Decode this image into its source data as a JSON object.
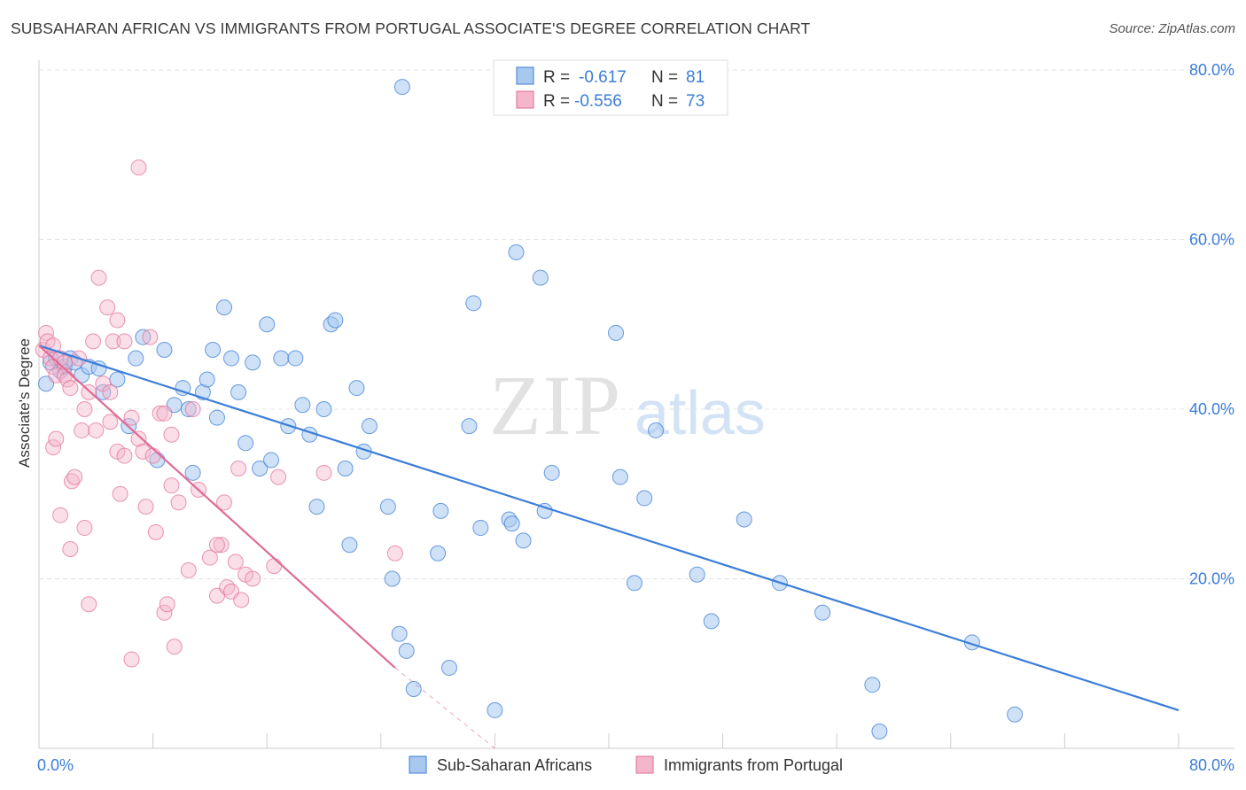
{
  "header": {
    "title": "SUBSAHARAN AFRICAN VS IMMIGRANTS FROM PORTUGAL ASSOCIATE'S DEGREE CORRELATION CHART",
    "source": "Source: ZipAtlas.com"
  },
  "watermark": {
    "zip": "ZIP",
    "atlas": "atlas"
  },
  "legend": {
    "rows": [
      {
        "r_label": "R =",
        "r_value": "-0.617",
        "n_label": "N =",
        "n_value": "81"
      },
      {
        "r_label": "R =",
        "r_value": "-0.556",
        "n_label": "N =",
        "n_value": "73"
      }
    ]
  },
  "bottom_legend": {
    "items": [
      {
        "label": "Sub-Saharan Africans"
      },
      {
        "label": "Immigrants from Portugal"
      }
    ]
  },
  "chart_data": {
    "type": "scatter",
    "ylabel": "Associate's Degree",
    "xlim": [
      0,
      80
    ],
    "ylim": [
      0,
      80
    ],
    "x_tick_labels": [
      "0.0%",
      "80.0%"
    ],
    "y_tick_labels": [
      "20.0%",
      "40.0%",
      "60.0%",
      "80.0%"
    ],
    "y_ticks": [
      20,
      40,
      60,
      80
    ],
    "grid": true,
    "colors": {
      "blue": "#3b7dd8",
      "pink": "#e06b96",
      "blue_fill": "#a8c8ef",
      "pink_fill": "#f5b6cb"
    },
    "series": [
      {
        "name": "Sub-Saharan Africans",
        "color": "#3b7dd8",
        "trend": {
          "x": [
            0,
            80
          ],
          "y": [
            47.5,
            4.5
          ]
        },
        "points": [
          [
            0.5,
            43
          ],
          [
            0.8,
            45.5
          ],
          [
            1.2,
            46
          ],
          [
            1.5,
            44.5
          ],
          [
            1.8,
            45
          ],
          [
            2.2,
            46
          ],
          [
            2.5,
            45.5
          ],
          [
            3,
            44
          ],
          [
            3.5,
            45
          ],
          [
            4.2,
            44.8
          ],
          [
            4.5,
            42
          ],
          [
            5.5,
            43.5
          ],
          [
            6.3,
            38
          ],
          [
            6.8,
            46
          ],
          [
            7.3,
            48.5
          ],
          [
            8.3,
            34
          ],
          [
            8.8,
            47
          ],
          [
            9.5,
            40.5
          ],
          [
            10.1,
            42.5
          ],
          [
            10.5,
            40
          ],
          [
            10.8,
            32.5
          ],
          [
            11.5,
            42
          ],
          [
            11.8,
            43.5
          ],
          [
            12.2,
            47
          ],
          [
            12.5,
            39
          ],
          [
            13,
            52
          ],
          [
            13.5,
            46
          ],
          [
            14,
            42
          ],
          [
            14.5,
            36
          ],
          [
            15,
            45.5
          ],
          [
            15.5,
            33
          ],
          [
            16,
            50
          ],
          [
            16.3,
            34
          ],
          [
            17,
            46
          ],
          [
            17.5,
            38
          ],
          [
            18,
            46
          ],
          [
            18.5,
            40.5
          ],
          [
            19,
            37
          ],
          [
            19.5,
            28.5
          ],
          [
            20,
            40
          ],
          [
            20.5,
            50
          ],
          [
            20.8,
            50.5
          ],
          [
            21.5,
            33
          ],
          [
            21.8,
            24
          ],
          [
            22.3,
            42.5
          ],
          [
            22.8,
            35
          ],
          [
            23.2,
            38
          ],
          [
            24.5,
            28.5
          ],
          [
            24.8,
            20
          ],
          [
            25.3,
            13.5
          ],
          [
            25.8,
            11.5
          ],
          [
            26.3,
            7
          ],
          [
            28,
            23
          ],
          [
            28.2,
            28
          ],
          [
            28.8,
            9.5
          ],
          [
            30.2,
            38
          ],
          [
            30.5,
            52.5
          ],
          [
            31,
            26
          ],
          [
            32,
            4.5
          ],
          [
            33,
            27
          ],
          [
            33.2,
            26.5
          ],
          [
            34,
            24.5
          ],
          [
            33.5,
            58.5
          ],
          [
            35.2,
            55.5
          ],
          [
            35.5,
            28
          ],
          [
            36,
            32.5
          ],
          [
            40.5,
            49
          ],
          [
            40.8,
            32
          ],
          [
            41.8,
            19.5
          ],
          [
            42.5,
            29.5
          ],
          [
            43.3,
            37.5
          ],
          [
            46.2,
            20.5
          ],
          [
            47.2,
            15
          ],
          [
            49.5,
            27
          ],
          [
            52,
            19.5
          ],
          [
            55,
            16
          ],
          [
            58.5,
            7.5
          ],
          [
            59,
            2
          ],
          [
            65.5,
            12.5
          ],
          [
            68.5,
            4
          ],
          [
            25.5,
            78
          ]
        ]
      },
      {
        "name": "Immigrants from Portugal",
        "color": "#e06b96",
        "trend": {
          "x": [
            0,
            25
          ],
          "y": [
            47.5,
            9.5
          ]
        },
        "trend_dashed": {
          "x": [
            25,
            32
          ],
          "y": [
            9.5,
            0
          ]
        },
        "points": [
          [
            0.3,
            47
          ],
          [
            0.5,
            49
          ],
          [
            0.6,
            48
          ],
          [
            0.8,
            46
          ],
          [
            1,
            45
          ],
          [
            1,
            47.5
          ],
          [
            1.2,
            44
          ],
          [
            1.5,
            46
          ],
          [
            1.8,
            45.5
          ],
          [
            1,
            35.5
          ],
          [
            1.2,
            36.5
          ],
          [
            1.5,
            27.5
          ],
          [
            1.8,
            44
          ],
          [
            2,
            43.5
          ],
          [
            2.2,
            42.5
          ],
          [
            2.2,
            23.5
          ],
          [
            2.3,
            31.5
          ],
          [
            2.5,
            32
          ],
          [
            2.8,
            46
          ],
          [
            3,
            37.5
          ],
          [
            3.2,
            40
          ],
          [
            3.5,
            42
          ],
          [
            3.2,
            26
          ],
          [
            3.5,
            17
          ],
          [
            3.8,
            48
          ],
          [
            4,
            37.5
          ],
          [
            4.2,
            55.5
          ],
          [
            4.5,
            43
          ],
          [
            4.8,
            52
          ],
          [
            5,
            42
          ],
          [
            5,
            38.5
          ],
          [
            5.2,
            48
          ],
          [
            5.5,
            50.5
          ],
          [
            5.5,
            35
          ],
          [
            5.7,
            30
          ],
          [
            6,
            48
          ],
          [
            6,
            34.5
          ],
          [
            6.5,
            39
          ],
          [
            6.5,
            10.5
          ],
          [
            7,
            68.5
          ],
          [
            7,
            36.5
          ],
          [
            7.3,
            35
          ],
          [
            7.5,
            28.5
          ],
          [
            7.8,
            48.5
          ],
          [
            8,
            34.5
          ],
          [
            8.2,
            25.5
          ],
          [
            8.5,
            39.5
          ],
          [
            8.8,
            39.5
          ],
          [
            8.8,
            16
          ],
          [
            9,
            17
          ],
          [
            9.3,
            37
          ],
          [
            9.5,
            12
          ],
          [
            9.3,
            31
          ],
          [
            9.8,
            29
          ],
          [
            10.5,
            21
          ],
          [
            10.8,
            40
          ],
          [
            11.2,
            30.5
          ],
          [
            12,
            22.5
          ],
          [
            12.5,
            18
          ],
          [
            12.8,
            24
          ],
          [
            13,
            29
          ],
          [
            13.2,
            19
          ],
          [
            13.5,
            18.5
          ],
          [
            13.8,
            22
          ],
          [
            14,
            33
          ],
          [
            14.2,
            17.5
          ],
          [
            14.5,
            20.5
          ],
          [
            15,
            20
          ],
          [
            16.5,
            21.5
          ],
          [
            16.8,
            32
          ],
          [
            20,
            32.5
          ],
          [
            25,
            23
          ],
          [
            12.5,
            24
          ]
        ]
      }
    ]
  }
}
